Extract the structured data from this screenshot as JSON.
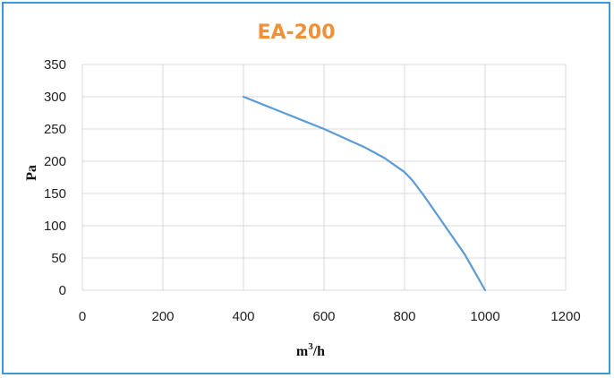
{
  "chart_data": {
    "type": "line",
    "title": "EA-200",
    "xlabel_base": "m",
    "xlabel_sup": "3",
    "xlabel_unit": "/h",
    "ylabel": "Pa",
    "xlim": [
      0,
      1200
    ],
    "ylim": [
      0,
      350
    ],
    "x_ticks": [
      0,
      200,
      400,
      600,
      800,
      1000,
      1200
    ],
    "y_ticks": [
      0,
      50,
      100,
      150,
      200,
      250,
      300,
      350
    ],
    "grid": true,
    "legend": "none",
    "series": [
      {
        "x": [
          400,
          500,
          600,
          700,
          750,
          800,
          820,
          850,
          900,
          950,
          1000
        ],
        "y": [
          300,
          275,
          250,
          222,
          205,
          183,
          170,
          145,
          100,
          55,
          0
        ]
      }
    ]
  },
  "colors": {
    "title": "#f0913a",
    "line": "#5b9bd5",
    "grid": "#d9d9d9",
    "frame": "#3a9ad9"
  }
}
